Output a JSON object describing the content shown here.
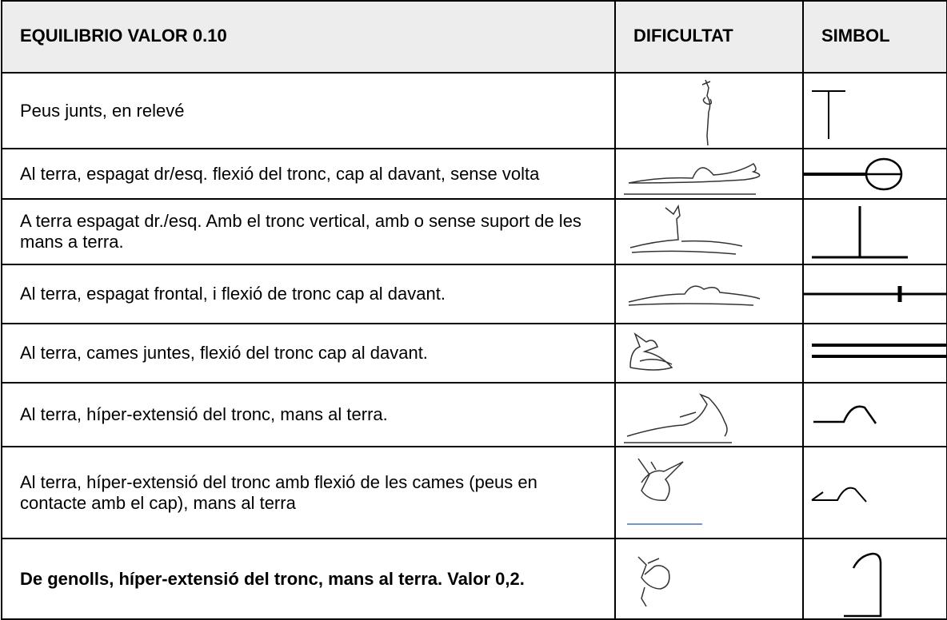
{
  "table": {
    "header": [
      "EQUILIBRIO VALOR 0.10",
      "DIFICULTAT",
      "SIMBOL"
    ],
    "rows": [
      "Peus junts, en relevé",
      "Al terra, espagat  dr/esq. flexió del tronc, cap al davant, sense volta",
      "A terra espagat dr./esq. Amb el tronc vertical, amb o sense suport de les mans a terra.",
      "Al terra, espagat frontal, i flexió de tronc cap al davant.",
      "Al terra, cames juntes, flexió del tronc cap al davant.",
      "Al terra, híper-extensió del tronc, mans al terra.",
      "Al terra, híper-extensió del tronc amb flexió de les cames (peus en contacte amb el  cap), mans al terra",
      "De genolls, híper-extensió del tronc, mans al terra. Valor 0,2."
    ]
  }
}
